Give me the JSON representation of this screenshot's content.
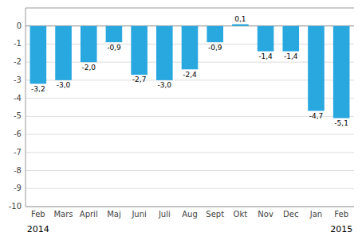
{
  "chart_data": {
    "type": "bar",
    "categories": [
      "Feb",
      "Mars",
      "April",
      "Maj",
      "Juni",
      "Juli",
      "Aug",
      "Sept",
      "Okt",
      "Nov",
      "Dec",
      "Jan",
      "Feb"
    ],
    "values": [
      -3.2,
      -3.0,
      -2.0,
      -0.9,
      -2.7,
      -3.0,
      -2.4,
      -0.9,
      0.1,
      -1.4,
      -1.4,
      -4.7,
      -5.1
    ],
    "value_labels": [
      "-3,2",
      "-3,0",
      "-2,0",
      "-0,9",
      "-2,7",
      "-3,0",
      "-2,4",
      "-0,9",
      "0,1",
      "-1,4",
      "-1,4",
      "-4,7",
      "-5,1"
    ],
    "color": "#29a8e0",
    "ylim": [
      -10,
      1.0
    ],
    "yticks": [
      0,
      -1,
      -2,
      -3,
      -4,
      -5,
      -6,
      -7,
      -8,
      -9,
      -10
    ],
    "grid": true,
    "data_labels": true,
    "annotations": [
      {
        "text": "2014",
        "category": 0
      },
      {
        "text": "2015",
        "category": 12
      }
    ]
  }
}
